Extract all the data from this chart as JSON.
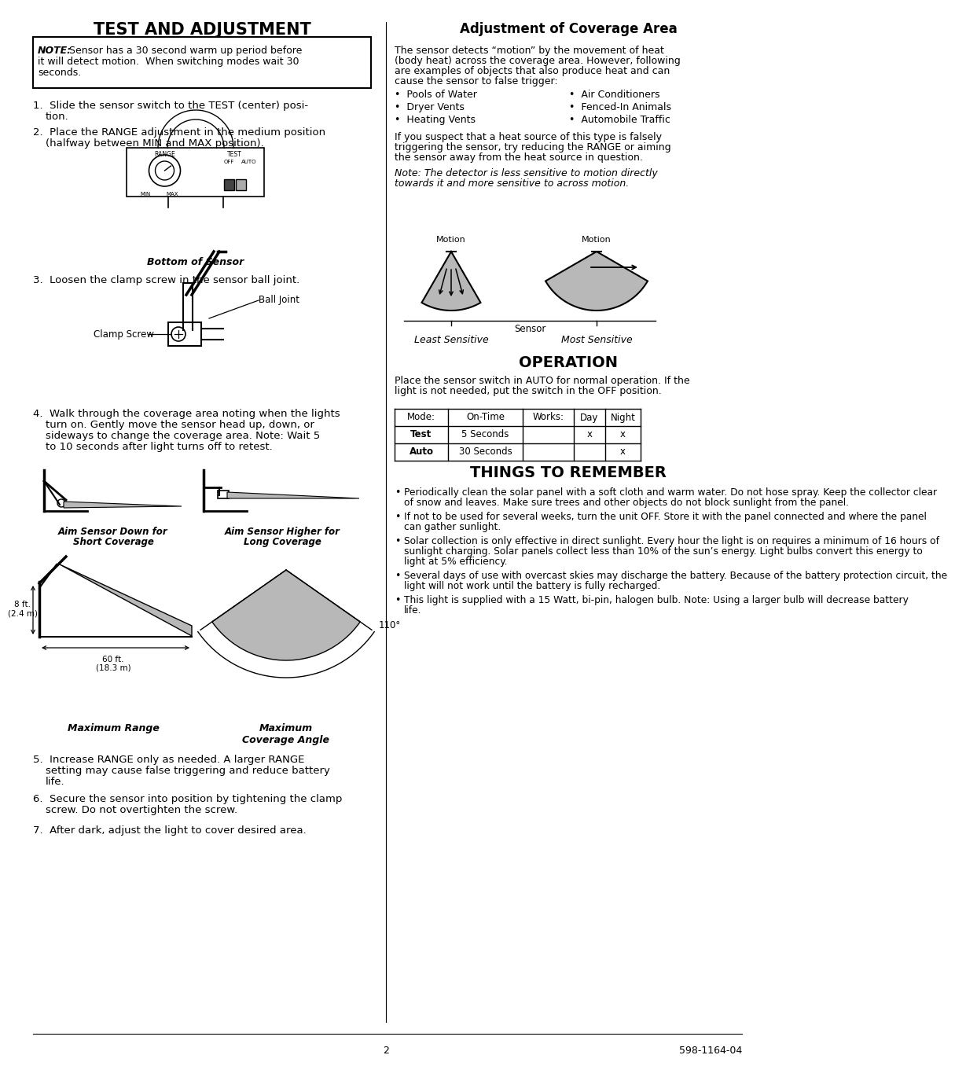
{
  "page_title_left": "TEST AND ADJUSTMENT",
  "page_title_right": "Adjustment of Coverage Area",
  "section_operation": "OPERATION",
  "section_things": "THINGS TO REMEMBER",
  "note_text_bold": "NOTE:",
  "note_text_rest": " Sensor has a 30 second warm up period before\nit will detect motion.  When switching modes wait 30\nseconds.",
  "step1": "1.  Slide the sensor switch to the TEST (center) posi-\n    tion.",
  "step2": "2.  Place the RANGE adjustment in the medium position\n    (halfway between MIN and MAX position).",
  "bottom_sensor_label": "Bottom of Sensor",
  "step3": "3.  Loosen the clamp screw in the sensor ball joint.",
  "step4": "4.  Walk through the coverage area noting when the lights\n    turn on. Gently move the sensor head up, down, or\n    sideways to change the coverage area. Note: Wait 5\n    to 10 seconds after light turns off to retest.",
  "aim_down_label": "Aim Sensor Down for\nShort Coverage",
  "aim_higher_label": "Aim Sensor Higher for\nLong Coverage",
  "max_range_label": "Maximum Range",
  "max_coverage_label": "Maximum\nCoverage Angle",
  "step5": "5.  Increase RANGE only as needed. A larger RANGE\n    setting may cause false triggering and reduce battery\n    life.",
  "step6": "6.  Secure the sensor into position by tightening the clamp\n    screw. Do not overtighten the screw.",
  "step7": "7.  After dark, adjust the light to cover desired area.",
  "coverage_intro_lines": [
    "The sensor detects “motion” by the movement of heat",
    "(body heat) across the coverage area. However, following",
    "are examples of objects that also produce heat and can",
    "cause the sensor to false trigger:"
  ],
  "bullet_left": [
    "Pools of Water",
    "Dryer Vents",
    "Heating Vents"
  ],
  "bullet_right": [
    "Air Conditioners",
    "Fenced-In Animals",
    "Automobile Traffic"
  ],
  "coverage_para2_lines": [
    "If you suspect that a heat source of this type is falsely",
    "triggering the sensor, try reducing the RANGE or aiming",
    "the sensor away from the heat source in question."
  ],
  "coverage_note_lines": [
    "Note: The detector is less sensitive to motion directly",
    "towards it and more sensitive to across motion."
  ],
  "least_sensitive": "Least Sensitive",
  "most_sensitive": "Most Sensitive",
  "sensor_label": "Sensor",
  "operation_intro_lines": [
    "Place the sensor switch in AUTO for normal operation. If the",
    "light is not needed, put the switch in the OFF position."
  ],
  "table_headers": [
    "Mode:",
    "On-Time",
    "Works:",
    "Day",
    "Night"
  ],
  "table_row1_label": "Test",
  "table_row1_time": "5 Seconds",
  "table_row1_day": "x",
  "table_row1_night": "x",
  "table_row2_label": "Auto",
  "table_row2_time": "30 Seconds",
  "table_row2_night": "x",
  "things_bullets": [
    "•  Periodically clean the solar panel with a soft cloth and warm water. Do not hose spray. Keep the collector clear\n   of snow and leaves. Make sure trees and other objects do not block sunlight from the panel.",
    "•  If not to be used for several weeks, turn the unit OFF. Store it with the panel connected and where the panel\n   can gather sunlight.",
    "•  Solar collection is only effective in direct sunlight. Every hour the light is on requires a minimum of 16 hours of\n   sunlight charging. Solar panels collect less than 10% of the sun’s energy. Light bulbs convert this energy to\n   light at 5% efficiency.",
    "•  Several days of use with overcast skies may discharge the battery. Because of the battery protection circuit, the\n   light will not work until the battery is fully recharged.",
    "•  This light is supplied with a 15 Watt, bi-pin, halogen bulb. Note: Using a larger bulb will decrease battery\n   life."
  ],
  "page_num": "2",
  "doc_num": "598-1164-04",
  "bg_color": "#ffffff",
  "gray_fill": "#b8b8b8",
  "dark_gray": "#606060"
}
